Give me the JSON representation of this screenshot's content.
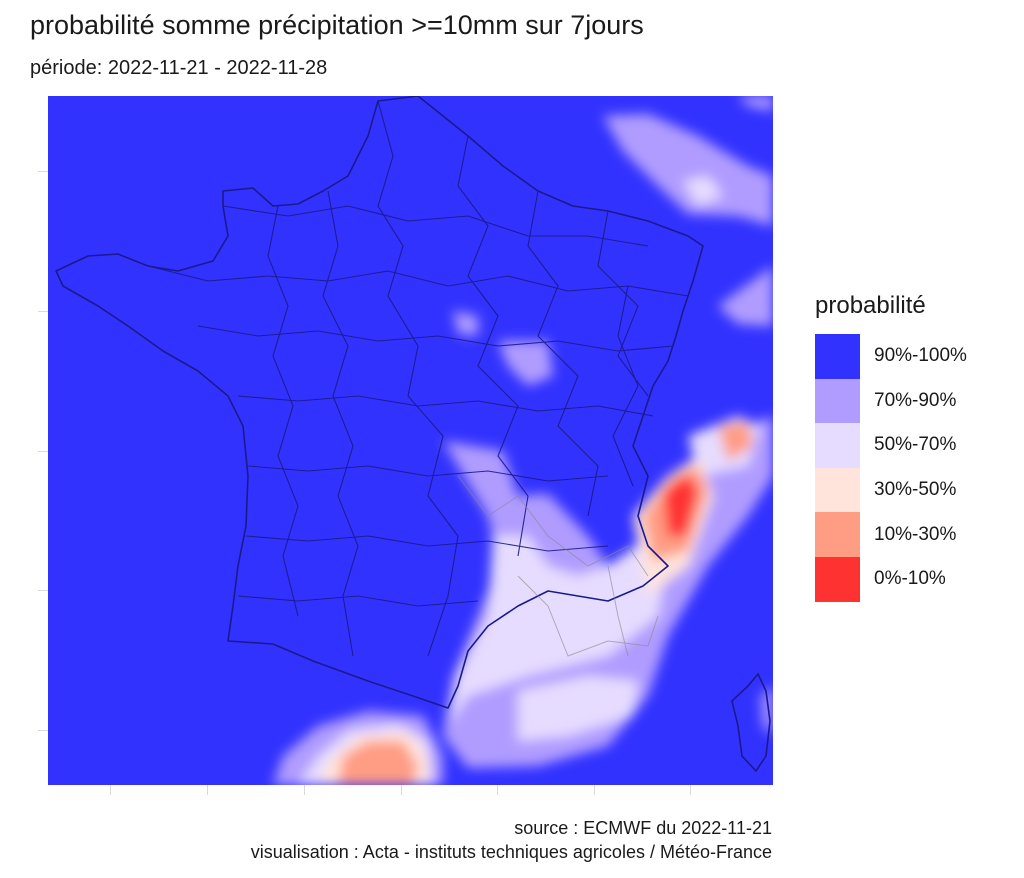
{
  "title": "probabilité somme précipitation >=10mm sur 7jours",
  "subtitle": "période: 2022-11-21 - 2022-11-28",
  "legend": {
    "title": "probabilité",
    "items": [
      {
        "label": "90%-100%",
        "color": "#3232ff"
      },
      {
        "label": "70%-90%",
        "color": "#b09cff"
      },
      {
        "label": "50%-70%",
        "color": "#e6dcff"
      },
      {
        "label": "30%-50%",
        "color": "#ffe4dc"
      },
      {
        "label": "10%-30%",
        "color": "#ff9c84"
      },
      {
        "label": "0%-10%",
        "color": "#ff3232"
      }
    ]
  },
  "map": {
    "region": "France",
    "background_class": "90%-100%",
    "boundary_color": "#1a1a8c"
  },
  "caption": {
    "source": "source : ECMWF du 2022-11-21",
    "visualisation": "visualisation : Acta - instituts techniques agricoles / Météo-France"
  }
}
